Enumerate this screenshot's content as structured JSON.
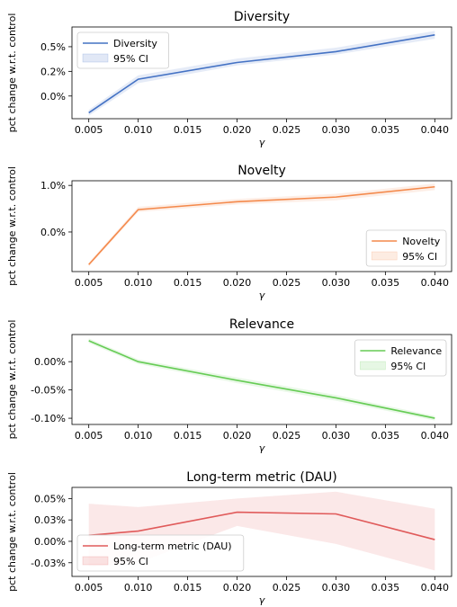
{
  "chart_data": [
    {
      "type": "line",
      "title": "Diversity",
      "xlabel": "γ",
      "ylabel": "pct change w.r.t. control",
      "x": [
        0.005,
        0.01,
        0.02,
        0.03,
        0.04
      ],
      "xticks": [
        "0.005",
        "0.010",
        "0.015",
        "0.020",
        "0.025",
        "0.030",
        "0.035",
        "0.040"
      ],
      "yticks": [
        {
          "label": "0.5%",
          "value": 0.5
        },
        {
          "label": "0.2%",
          "value": 0.25
        },
        {
          "label": "0.0%",
          "value": 0.0
        }
      ],
      "ylim": [
        -0.23,
        0.7
      ],
      "series": [
        {
          "name": "Diversity",
          "color": "#4472c4",
          "values": [
            -0.17,
            0.17,
            0.34,
            0.45,
            0.62
          ],
          "ci_low": [
            -0.2,
            0.13,
            0.31,
            0.42,
            0.58
          ],
          "ci_high": [
            -0.14,
            0.21,
            0.38,
            0.49,
            0.66
          ]
        }
      ],
      "ci_label": "95% CI",
      "legend": "upper-left"
    },
    {
      "type": "line",
      "title": "Novelty",
      "xlabel": "γ",
      "ylabel": "pct change w.r.t. control",
      "x": [
        0.005,
        0.01,
        0.02,
        0.03,
        0.04
      ],
      "xticks": [
        "0.005",
        "0.010",
        "0.015",
        "0.020",
        "0.025",
        "0.030",
        "0.035",
        "0.040"
      ],
      "yticks": [
        {
          "label": "1.0%",
          "value": 1.0
        },
        {
          "label": "0.0%",
          "value": 0.0
        }
      ],
      "ylim": [
        -0.85,
        1.1
      ],
      "series": [
        {
          "name": "Novelty",
          "color": "#f4894b",
          "values": [
            -0.7,
            0.48,
            0.65,
            0.75,
            0.97
          ],
          "ci_low": [
            -0.74,
            0.43,
            0.59,
            0.68,
            0.9
          ],
          "ci_high": [
            -0.66,
            0.54,
            0.71,
            0.82,
            1.04
          ]
        }
      ],
      "ci_label": "95% CI",
      "legend": "lower-right"
    },
    {
      "type": "line",
      "title": "Relevance",
      "xlabel": "γ",
      "ylabel": "pct change w.r.t. control",
      "x": [
        0.005,
        0.01,
        0.02,
        0.03,
        0.04
      ],
      "xticks": [
        "0.005",
        "0.010",
        "0.015",
        "0.020",
        "0.025",
        "0.030",
        "0.035",
        "0.040"
      ],
      "yticks": [
        {
          "label": "0.00%",
          "value": 0.0
        },
        {
          "label": "-0.05%",
          "value": -0.05
        },
        {
          "label": "-0.10%",
          "value": -0.1
        }
      ],
      "ylim": [
        -0.111,
        0.048
      ],
      "series": [
        {
          "name": "Relevance",
          "color": "#66cc55",
          "values": [
            0.037,
            0.0,
            -0.033,
            -0.064,
            -0.1
          ],
          "ci_low": [
            0.033,
            -0.004,
            -0.038,
            -0.069,
            -0.104
          ],
          "ci_high": [
            0.041,
            0.004,
            -0.028,
            -0.059,
            -0.096
          ]
        }
      ],
      "ci_label": "95% CI",
      "legend": "upper-right"
    },
    {
      "type": "line",
      "title": "Long-term metric (DAU)",
      "xlabel": "γ",
      "ylabel": "pct change w.r.t. control",
      "x": [
        0.005,
        0.01,
        0.02,
        0.03,
        0.04
      ],
      "xticks": [
        "0.005",
        "0.010",
        "0.015",
        "0.020",
        "0.025",
        "0.030",
        "0.035",
        "0.040"
      ],
      "yticks": [
        {
          "label": "0.05%",
          "value": 0.05
        },
        {
          "label": "0.03%",
          "value": 0.025
        },
        {
          "label": "0.00%",
          "value": 0.0
        },
        {
          "label": "-0.03%",
          "value": -0.025
        }
      ],
      "ylim": [
        -0.041,
        0.063
      ],
      "series": [
        {
          "name": "Long-term metric (DAU)",
          "color": "#e05a5a",
          "values": [
            0.007,
            0.012,
            0.034,
            0.032,
            0.002
          ],
          "ci_low": [
            -0.03,
            -0.025,
            0.018,
            -0.003,
            -0.034
          ],
          "ci_high": [
            0.044,
            0.04,
            0.05,
            0.058,
            0.038
          ]
        }
      ],
      "ci_label": "95% CI",
      "legend": "lower-left"
    }
  ]
}
